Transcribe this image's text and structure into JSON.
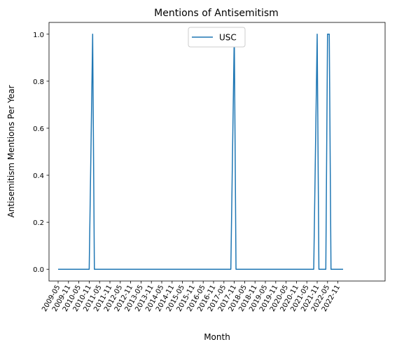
{
  "chart_data": {
    "type": "line",
    "title": "Mentions of Antisemitism",
    "xlabel": "Month",
    "ylabel": "Antisemitism Mentions Per Year",
    "ylim": [
      -0.05,
      1.05
    ],
    "y_ticks": [
      0.0,
      0.2,
      0.4,
      0.6,
      0.8,
      1.0
    ],
    "y_tick_labels": [
      "0.0",
      "0.2",
      "0.4",
      "0.6",
      "0.8",
      "1.0"
    ],
    "grid": false,
    "legend_position": "upper center",
    "x_tick_labels": [
      "2009-05",
      "2009-11",
      "2010-05",
      "2010-11",
      "2011-05",
      "2011-11",
      "2012-05",
      "2012-11",
      "2013-05",
      "2013-11",
      "2014-05",
      "2014-11",
      "2015-05",
      "2015-11",
      "2016-05",
      "2016-11",
      "2017-05",
      "2017-11",
      "2018-05",
      "2018-11",
      "2019-05",
      "2019-11",
      "2020-05",
      "2020-11",
      "2021-05",
      "2021-11",
      "2022-05",
      "2022-11"
    ],
    "series": [
      {
        "name": "USC",
        "color": "#1f77b4",
        "x": [
          "2009-05",
          "2010-11",
          "2011-01",
          "2011-02",
          "2017-09",
          "2017-11",
          "2017-12",
          "2021-09",
          "2021-11",
          "2021-12",
          "2022-04",
          "2022-05",
          "2022-06",
          "2022-07",
          "2023-02"
        ],
        "y": [
          0,
          0,
          1,
          0,
          0,
          1,
          0,
          0,
          1,
          0,
          0,
          1,
          1,
          0,
          0
        ]
      }
    ]
  }
}
